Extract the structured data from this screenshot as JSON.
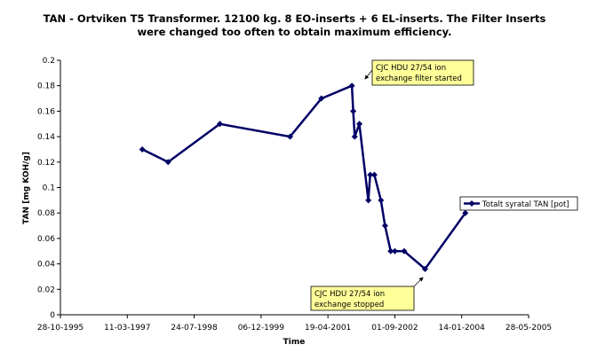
{
  "chart_data": {
    "type": "line",
    "title_line1": "TAN - Ortviken T5 Transformer. 12100 kg. 8 EO-inserts + 6 EL-inserts.  The Filter Inserts",
    "title_line2": "were changed too often to obtain maximum efficiency.",
    "xlabel": "Time",
    "ylabel": "TAN [mg KOH/g]",
    "ylim": [
      0,
      0.2
    ],
    "yticks": [
      0,
      0.02,
      0.04,
      0.06,
      0.08,
      0.1,
      0.12,
      0.14,
      0.16,
      0.18,
      0.2
    ],
    "ytick_labels": [
      "0",
      "0.02",
      "0.04",
      "0.06",
      "0.08",
      "0.1",
      "0.12",
      "0.14",
      "0.16",
      "0.18",
      "0.2"
    ],
    "xlim": [
      "1995-10-28",
      "2005-05-28"
    ],
    "xticks": [
      "1995-10-28",
      "1997-03-11",
      "1998-07-24",
      "1999-12-06",
      "2001-04-19",
      "2002-09-01",
      "2004-01-14",
      "2005-05-28"
    ],
    "xtick_labels": [
      "28-10-1995",
      "11-03-1997",
      "24-07-1998",
      "06-12-1999",
      "19-04-2001",
      "01-09-2002",
      "14-01-2004",
      "28-05-2005"
    ],
    "series": [
      {
        "name": "Totalt syratal TAN [pot]",
        "color": "#000066",
        "x": [
          "1997-07-01",
          "1998-01-10",
          "1999-02-01",
          "2000-07-10",
          "2001-03-01",
          "2001-10-15",
          "2001-10-25",
          "2001-11-05",
          "2001-12-10",
          "2002-02-15",
          "2002-03-01",
          "2002-04-01",
          "2002-05-20",
          "2002-06-20",
          "2002-08-01",
          "2002-09-01",
          "2002-11-10",
          "2003-04-15",
          "2004-02-10"
        ],
        "y": [
          0.13,
          0.12,
          0.15,
          0.14,
          0.17,
          0.18,
          0.16,
          0.14,
          0.15,
          0.09,
          0.11,
          0.11,
          0.09,
          0.07,
          0.05,
          0.05,
          0.05,
          0.036,
          0.08
        ]
      }
    ],
    "annotations": [
      {
        "text_line1": "CJC HDU 27/54 ion",
        "text_line2": "exchange filter started"
      },
      {
        "text_line1": "CJC HDU 27/54 ion",
        "text_line2": "exchange stopped"
      }
    ],
    "legend_position": "right"
  }
}
